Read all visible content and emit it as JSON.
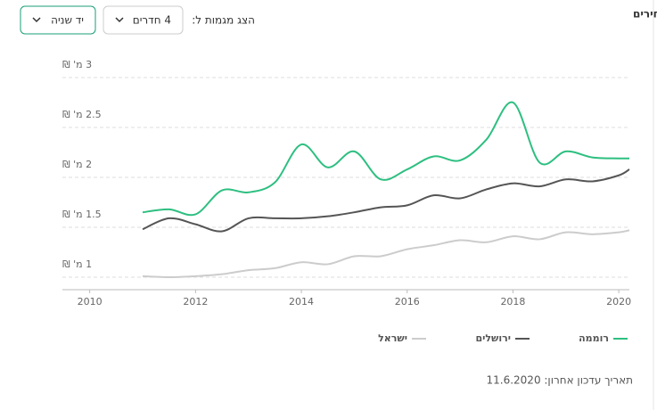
{
  "header": {
    "title": "מגמות מחירים",
    "filter_label": "הצג מגמות ל:",
    "rooms_dropdown": "4 חדרים",
    "condition_dropdown": "יד שניה"
  },
  "chart_data": {
    "type": "line",
    "x": [
      2011,
      2011.5,
      2012,
      2012.5,
      2013,
      2013.5,
      2014,
      2014.5,
      2015,
      2015.5,
      2016,
      2016.5,
      2017,
      2017.5,
      2018,
      2018.5,
      2019,
      2019.5,
      2020,
      2020.2
    ],
    "series": [
      {
        "name": "רוממה",
        "color": "#2dbf80",
        "values": [
          1.65,
          1.68,
          1.63,
          1.87,
          1.85,
          1.95,
          2.33,
          2.1,
          2.26,
          1.98,
          2.08,
          2.21,
          2.17,
          2.38,
          2.75,
          2.15,
          2.26,
          2.2,
          2.19,
          2.19
        ]
      },
      {
        "name": "ירושלים",
        "color": "#555555",
        "values": [
          1.48,
          1.59,
          1.53,
          1.46,
          1.59,
          1.59,
          1.59,
          1.61,
          1.65,
          1.7,
          1.72,
          1.82,
          1.79,
          1.88,
          1.94,
          1.91,
          1.98,
          1.96,
          2.02,
          2.08
        ]
      },
      {
        "name": "ישראל",
        "color": "#cccccc",
        "values": [
          1.01,
          1.0,
          1.01,
          1.03,
          1.07,
          1.09,
          1.15,
          1.13,
          1.21,
          1.21,
          1.28,
          1.32,
          1.37,
          1.35,
          1.41,
          1.38,
          1.45,
          1.43,
          1.45,
          1.47
        ]
      }
    ],
    "xlim": [
      2009.5,
      2020.2
    ],
    "xticks": [
      2010,
      2012,
      2014,
      2016,
      2018,
      2020
    ],
    "ylim": [
      0.875,
      3
    ],
    "yticks": [
      {
        "value": 1,
        "label": "1 מ' ₪"
      },
      {
        "value": 1.5,
        "label": "1.5 מ' ₪"
      },
      {
        "value": 2,
        "label": "2 מ' ₪"
      },
      {
        "value": 2.5,
        "label": "2.5 מ' ₪"
      },
      {
        "value": 3,
        "label": "3 מ' ₪"
      }
    ],
    "grid": true
  },
  "footer": {
    "last_updated": "תאריך עדכון אחרון: 11.6.2020"
  }
}
